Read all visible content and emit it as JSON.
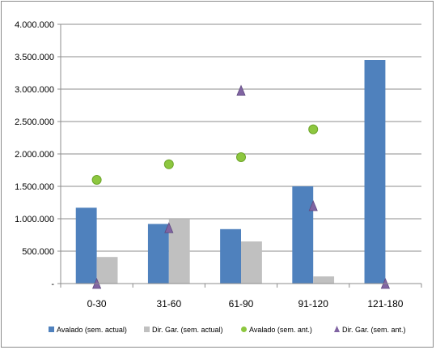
{
  "chart_data": {
    "type": "bar",
    "categories": [
      "0-30",
      "31-60",
      "61-90",
      "91-120",
      "121-180"
    ],
    "ylim": [
      0,
      4000000
    ],
    "yticks": [
      0,
      500000,
      1000000,
      1500000,
      2000000,
      2500000,
      3000000,
      3500000,
      4000000
    ],
    "ytick_labels": [
      "-",
      "500.000",
      "1.000.000",
      "1.500.000",
      "2.000.000",
      "2.500.000",
      "3.000.000",
      "3.500.000",
      "4.000.000"
    ],
    "grid": "horizontal",
    "legend_position": "bottom",
    "series": [
      {
        "name": "Avalado (sem. actual)",
        "kind": "bar",
        "marker": "square",
        "color": "#4f81bd",
        "values": [
          1170000,
          920000,
          840000,
          1500000,
          3450000
        ]
      },
      {
        "name": "Dir. Gar. (sem. actual)",
        "kind": "bar",
        "marker": "square",
        "color": "#c0c0c0",
        "values": [
          410000,
          990000,
          650000,
          110000,
          0
        ]
      },
      {
        "name": "Avalado (sem. ant.)",
        "kind": "scatter",
        "marker": "circle",
        "color": "#8dc73f",
        "values": [
          1600000,
          1840000,
          1950000,
          2380000,
          null
        ]
      },
      {
        "name": "Dir. Gar. (sem. ant.)",
        "kind": "scatter",
        "marker": "triangle",
        "color": "#8064a2",
        "values": [
          0,
          860000,
          2980000,
          1200000,
          0
        ]
      }
    ]
  }
}
